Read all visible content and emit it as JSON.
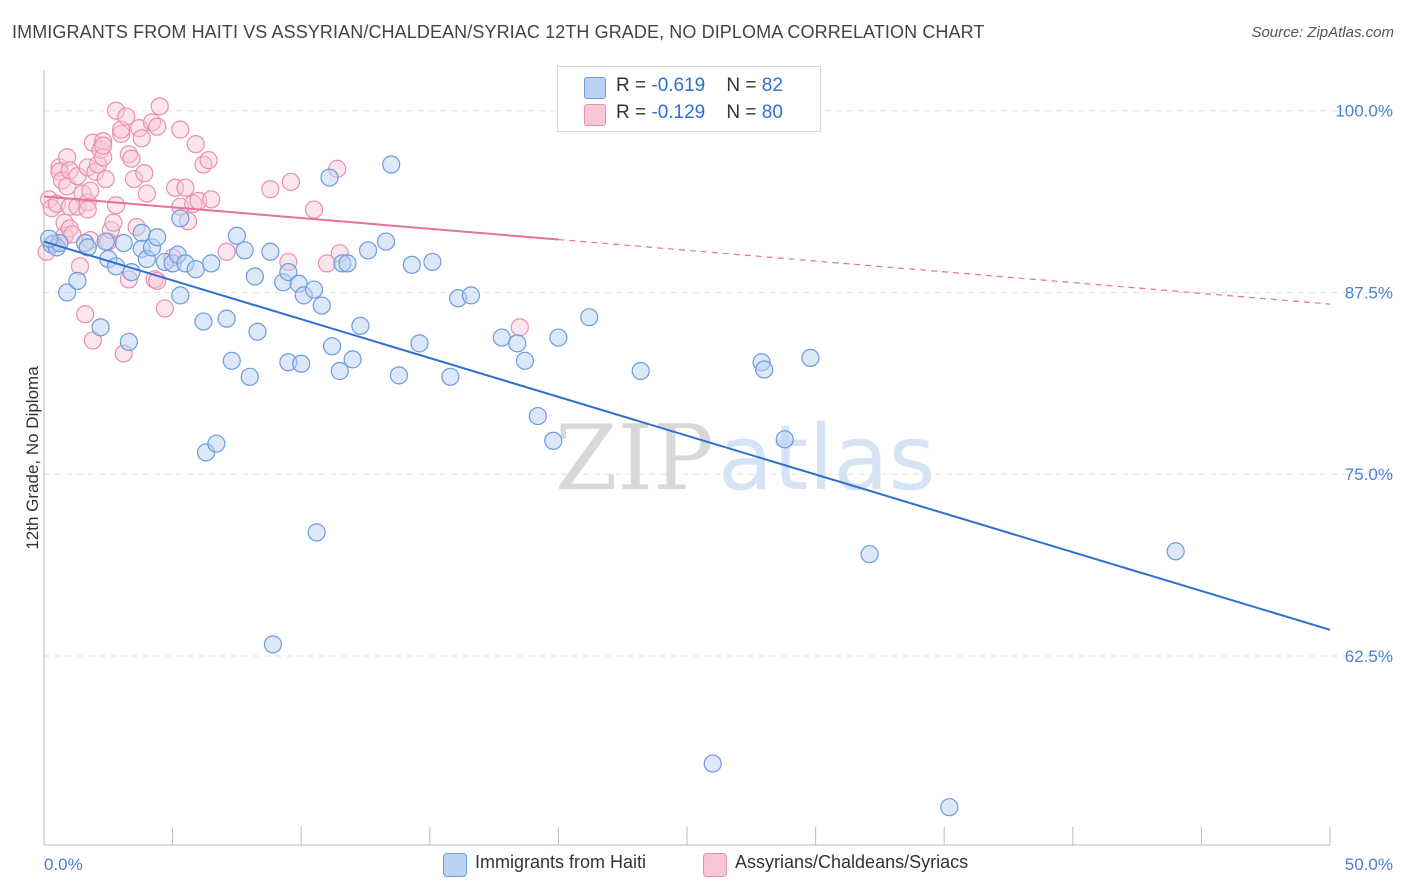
{
  "header": {
    "title": "IMMIGRANTS FROM HAITI VS ASSYRIAN/CHALDEAN/SYRIAC 12TH GRADE, NO DIPLOMA CORRELATION CHART",
    "source": "Source: ZipAtlas.com"
  },
  "legend_top": {
    "rows": [
      {
        "r_label": "R = ",
        "r_value": "-0.619",
        "n_label": "N = ",
        "n_value": "82"
      },
      {
        "r_label": "R = ",
        "r_value": "-0.129",
        "n_label": "N = ",
        "n_value": "80"
      }
    ]
  },
  "legend_bottom": {
    "items": [
      {
        "label": "Immigrants from Haiti"
      },
      {
        "label": "Assyrians/Chaldeans/Syriacs"
      }
    ]
  },
  "watermark": {
    "zip": "ZIP",
    "atlas": "atlas"
  },
  "colors": {
    "blue_fill": "#b9d1f2",
    "blue_stroke": "#6b9be0",
    "blue_line": "#2f6fd0",
    "pink_fill": "#f8c7d6",
    "pink_stroke": "#e98fac",
    "pink_line": "#e8709a",
    "grid": "#e3e3e3",
    "axis_text": "#4a7fd0"
  },
  "chart_data": {
    "type": "scatter",
    "title": "IMMIGRANTS FROM HAITI VS ASSYRIAN/CHALDEAN/SYRIAC 12TH GRADE, NO DIPLOMA CORRELATION CHART",
    "xlabel": "",
    "ylabel": "12th Grade, No Diploma",
    "xlim": [
      0,
      50
    ],
    "ylim": [
      49.5,
      102.8
    ],
    "x_tick_labels": [
      "0.0%",
      "50.0%"
    ],
    "y_ticks": [
      62.5,
      75.0,
      87.5,
      100.0
    ],
    "y_tick_labels": [
      "62.5%",
      "75.0%",
      "87.5%",
      "100.0%"
    ],
    "grid": true,
    "legend_position": "top-center",
    "series": [
      {
        "name": "Immigrants from Haiti",
        "color": "#6b9be0",
        "r": -0.619,
        "n": 82,
        "trend": {
          "x": [
            0,
            50
          ],
          "y": [
            91.0,
            64.3
          ],
          "dashed_from_x": null
        },
        "points": [
          [
            0.3,
            90.8
          ],
          [
            0.5,
            90.6
          ],
          [
            0.6,
            90.9
          ],
          [
            0.9,
            87.5
          ],
          [
            1.3,
            88.3
          ],
          [
            1.6,
            90.9
          ],
          [
            1.7,
            90.6
          ],
          [
            2.2,
            85.1
          ],
          [
            2.4,
            91.0
          ],
          [
            2.5,
            89.8
          ],
          [
            2.8,
            89.3
          ],
          [
            3.1,
            90.9
          ],
          [
            3.3,
            84.1
          ],
          [
            3.4,
            88.9
          ],
          [
            3.8,
            91.6
          ],
          [
            3.8,
            90.5
          ],
          [
            4.0,
            89.8
          ],
          [
            4.2,
            90.6
          ],
          [
            4.4,
            91.3
          ],
          [
            4.7,
            89.6
          ],
          [
            5.0,
            89.5
          ],
          [
            5.2,
            90.1
          ],
          [
            5.3,
            87.3
          ],
          [
            5.3,
            92.6
          ],
          [
            5.5,
            89.5
          ],
          [
            5.9,
            89.1
          ],
          [
            6.2,
            85.5
          ],
          [
            6.3,
            76.5
          ],
          [
            6.5,
            89.5
          ],
          [
            6.7,
            77.1
          ],
          [
            7.1,
            85.7
          ],
          [
            7.3,
            82.8
          ],
          [
            7.5,
            91.4
          ],
          [
            7.8,
            90.4
          ],
          [
            8.0,
            81.7
          ],
          [
            8.2,
            88.6
          ],
          [
            8.3,
            84.8
          ],
          [
            8.8,
            90.3
          ],
          [
            8.9,
            63.3
          ],
          [
            9.3,
            88.2
          ],
          [
            9.5,
            88.9
          ],
          [
            9.5,
            82.7
          ],
          [
            9.9,
            88.1
          ],
          [
            10.0,
            82.6
          ],
          [
            10.1,
            87.3
          ],
          [
            10.5,
            87.7
          ],
          [
            10.6,
            71.0
          ],
          [
            10.8,
            86.6
          ],
          [
            11.1,
            95.4
          ],
          [
            11.2,
            83.8
          ],
          [
            11.5,
            82.1
          ],
          [
            11.6,
            89.5
          ],
          [
            11.8,
            89.5
          ],
          [
            12.0,
            82.9
          ],
          [
            12.3,
            85.2
          ],
          [
            12.6,
            90.4
          ],
          [
            13.3,
            91.0
          ],
          [
            13.5,
            96.3
          ],
          [
            13.8,
            81.8
          ],
          [
            14.3,
            89.4
          ],
          [
            14.6,
            84.0
          ],
          [
            15.1,
            89.6
          ],
          [
            15.8,
            81.7
          ],
          [
            16.1,
            87.1
          ],
          [
            16.6,
            87.3
          ],
          [
            17.8,
            84.4
          ],
          [
            18.4,
            84.0
          ],
          [
            18.7,
            82.8
          ],
          [
            19.2,
            79.0
          ],
          [
            19.8,
            77.3
          ],
          [
            20.0,
            84.4
          ],
          [
            21.2,
            85.8
          ],
          [
            23.2,
            82.1
          ],
          [
            26.0,
            55.1
          ],
          [
            27.9,
            82.7
          ],
          [
            28.0,
            82.2
          ],
          [
            28.8,
            77.4
          ],
          [
            29.8,
            83.0
          ],
          [
            32.1,
            69.5
          ],
          [
            35.2,
            52.1
          ],
          [
            44.0,
            69.7
          ],
          [
            0.2,
            91.2
          ]
        ]
      },
      {
        "name": "Assyrians/Chaldeans/Syriacs",
        "color": "#e98fac",
        "r": -0.129,
        "n": 80,
        "trend": {
          "x": [
            0,
            50
          ],
          "y": [
            94.1,
            86.7
          ],
          "dashed_from_x": 20
        },
        "points": [
          [
            0.1,
            90.3
          ],
          [
            0.2,
            93.9
          ],
          [
            0.3,
            93.3
          ],
          [
            0.4,
            90.9
          ],
          [
            0.5,
            93.6
          ],
          [
            0.6,
            96.1
          ],
          [
            0.6,
            95.8
          ],
          [
            0.7,
            95.2
          ],
          [
            0.8,
            91.4
          ],
          [
            0.8,
            92.3
          ],
          [
            0.9,
            96.8
          ],
          [
            0.9,
            94.8
          ],
          [
            1.0,
            91.9
          ],
          [
            1.0,
            95.9
          ],
          [
            1.0,
            93.4
          ],
          [
            1.1,
            91.5
          ],
          [
            1.3,
            93.4
          ],
          [
            1.3,
            95.5
          ],
          [
            1.4,
            89.3
          ],
          [
            1.5,
            94.3
          ],
          [
            1.6,
            86.0
          ],
          [
            1.7,
            96.1
          ],
          [
            1.7,
            93.7
          ],
          [
            1.7,
            93.2
          ],
          [
            1.8,
            94.5
          ],
          [
            1.8,
            91.1
          ],
          [
            1.9,
            97.8
          ],
          [
            1.9,
            84.2
          ],
          [
            2.0,
            95.8
          ],
          [
            2.1,
            96.3
          ],
          [
            2.2,
            97.3
          ],
          [
            2.3,
            97.9
          ],
          [
            2.3,
            96.8
          ],
          [
            2.3,
            97.6
          ],
          [
            2.4,
            95.3
          ],
          [
            2.5,
            91.0
          ],
          [
            2.6,
            91.8
          ],
          [
            2.7,
            92.3
          ],
          [
            2.8,
            100.0
          ],
          [
            2.8,
            93.5
          ],
          [
            3.0,
            98.4
          ],
          [
            3.0,
            98.7
          ],
          [
            3.1,
            83.3
          ],
          [
            3.2,
            99.6
          ],
          [
            3.3,
            88.4
          ],
          [
            3.3,
            97.0
          ],
          [
            3.4,
            96.7
          ],
          [
            3.5,
            95.3
          ],
          [
            3.6,
            92.0
          ],
          [
            3.7,
            98.8
          ],
          [
            3.8,
            98.1
          ],
          [
            3.9,
            95.7
          ],
          [
            4.0,
            94.3
          ],
          [
            4.2,
            99.2
          ],
          [
            4.3,
            88.4
          ],
          [
            4.4,
            98.9
          ],
          [
            4.4,
            88.3
          ],
          [
            4.5,
            100.3
          ],
          [
            4.7,
            86.4
          ],
          [
            5.0,
            89.9
          ],
          [
            5.1,
            94.7
          ],
          [
            5.3,
            93.4
          ],
          [
            5.3,
            98.7
          ],
          [
            5.5,
            94.7
          ],
          [
            5.6,
            92.4
          ],
          [
            5.8,
            93.6
          ],
          [
            5.9,
            97.7
          ],
          [
            6.0,
            93.8
          ],
          [
            6.2,
            96.3
          ],
          [
            6.4,
            96.6
          ],
          [
            6.5,
            93.9
          ],
          [
            7.1,
            90.3
          ],
          [
            8.8,
            94.6
          ],
          [
            9.5,
            89.6
          ],
          [
            9.6,
            95.1
          ],
          [
            10.5,
            93.2
          ],
          [
            11.0,
            89.5
          ],
          [
            11.4,
            96.0
          ],
          [
            11.5,
            90.2
          ],
          [
            18.5,
            85.1
          ]
        ]
      }
    ]
  }
}
